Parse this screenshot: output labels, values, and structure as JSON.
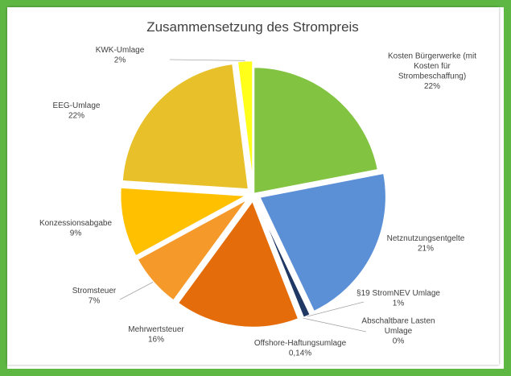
{
  "chart_data": {
    "type": "pie",
    "title": "Zusammensetzung des Strompreis",
    "slices": [
      {
        "name": "Kosten Bürgerwerke (mit Kosten für Strombeschaffung)",
        "label_lines": [
          "Kosten Bürgerwerke (mit",
          "Kosten für",
          "Strombeschaffung)"
        ],
        "pct_label": "22%",
        "value": 22,
        "color": "#82c341",
        "exploded": false
      },
      {
        "name": "Netznutzungsentgelte",
        "label_lines": [
          "Netznutzungsentgelte"
        ],
        "pct_label": "21%",
        "value": 21,
        "color": "#5b8fd6",
        "exploded": true
      },
      {
        "name": "§19 StromNEV Umlage",
        "label_lines": [
          "§19 StromNEV Umlage"
        ],
        "pct_label": "1%",
        "value": 1,
        "color": "#1f3864",
        "exploded": true
      },
      {
        "name": "Abschaltbare Lasten Umlage",
        "label_lines": [
          "Abschaltbare Lasten",
          "Umlage"
        ],
        "pct_label": "0%",
        "value": 0,
        "color": "#7f7f7f",
        "exploded": true
      },
      {
        "name": "Offshore-Haftungsumlage",
        "label_lines": [
          "Offshore-Haftungsumlage"
        ],
        "pct_label": "0,14%",
        "value": 0.14,
        "color": "#8e3a07",
        "exploded": true
      },
      {
        "name": "Mehrwertsteuer",
        "label_lines": [
          "Mehrwertsteuer"
        ],
        "pct_label": "16%",
        "value": 16,
        "color": "#e46c0a",
        "exploded": true
      },
      {
        "name": "Stromsteuer",
        "label_lines": [
          "Stromsteuer"
        ],
        "pct_label": "7%",
        "value": 7,
        "color": "#f59a2a",
        "exploded": true
      },
      {
        "name": "Konzessionsabgabe",
        "label_lines": [
          "Konzessionsabgabe"
        ],
        "pct_label": "9%",
        "value": 9,
        "color": "#ffc000",
        "exploded": true
      },
      {
        "name": "EEG-Umlage",
        "label_lines": [
          "EEG-Umlage"
        ],
        "pct_label": "22%",
        "value": 22,
        "color": "#e8c12a",
        "exploded": true
      },
      {
        "name": "KWK-Umlage",
        "label_lines": [
          "KWK-Umlage"
        ],
        "pct_label": "2%",
        "value": 2,
        "color": "#ffff1a",
        "exploded": true
      }
    ]
  }
}
